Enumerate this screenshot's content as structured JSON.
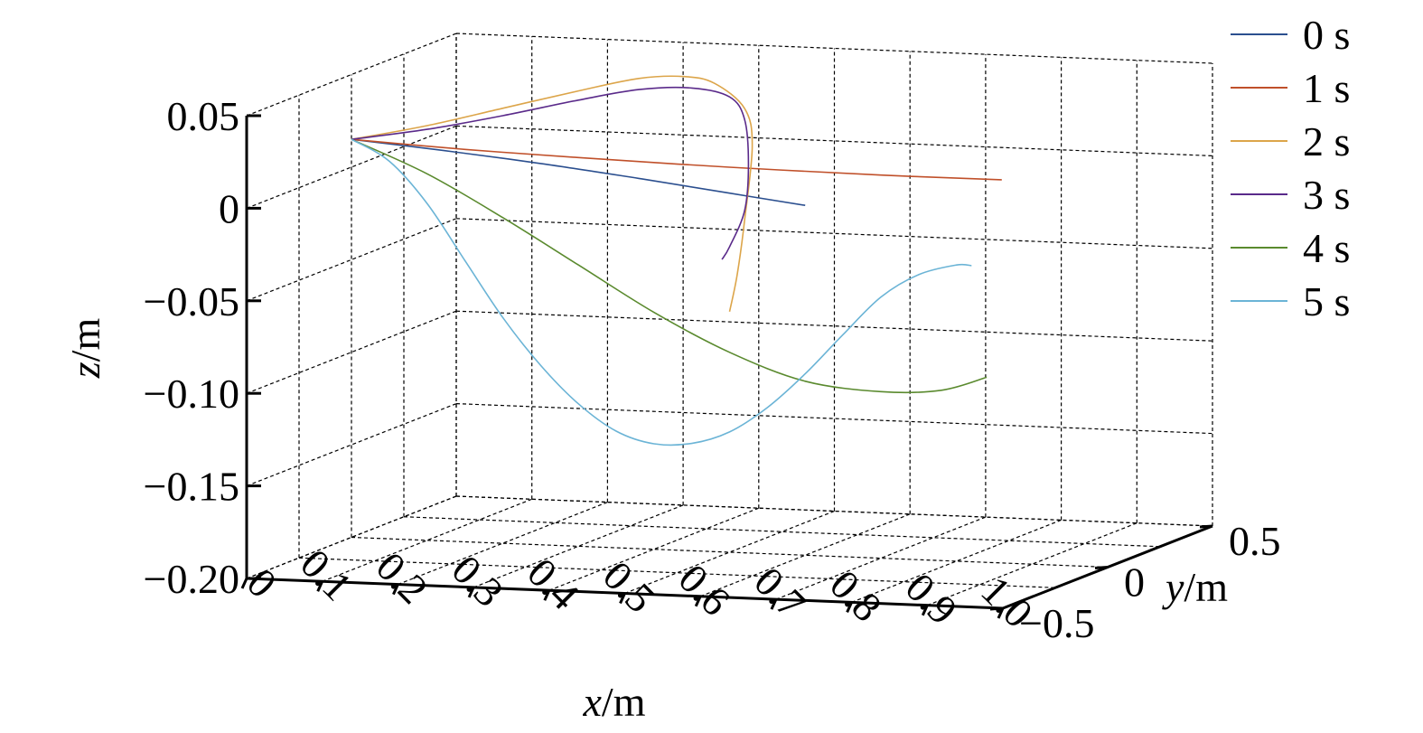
{
  "chart_data": {
    "type": "line",
    "projection": "3d",
    "grid": true,
    "legend_placement": "top-right",
    "title": "",
    "xlabel": {
      "var": "x",
      "unit": "/m"
    },
    "ylabel": {
      "var": "y",
      "unit": "/m"
    },
    "zlabel": {
      "var": "z",
      "unit": "/m"
    },
    "xlim": [
      0,
      1.0
    ],
    "ylim": [
      -0.5,
      0.5
    ],
    "zlim": [
      -0.2,
      0.05
    ],
    "x_ticks": [
      "0",
      "0.1",
      "0.2",
      "0.3",
      "0.4",
      "0.5",
      "0.6",
      "0.7",
      "0.8",
      "0.9",
      "1.0"
    ],
    "y_ticks": [
      "−0.5",
      "0",
      "0.5"
    ],
    "z_ticks": [
      "0.05",
      "0",
      "−0.05",
      "−0.10",
      "−0.15",
      "−0.20"
    ],
    "series": [
      {
        "name": "0 s",
        "color": "#2b4f8f",
        "x": [
          0,
          0.12,
          0.25,
          0.38,
          0.5,
          0.6
        ],
        "y": [
          0,
          0,
          0,
          0,
          0,
          0
        ],
        "z": [
          0.015,
          0.011,
          0.006,
          0.0,
          -0.006,
          -0.011
        ]
      },
      {
        "name": "1 s",
        "color": "#c0502a",
        "x": [
          0,
          0.15,
          0.3,
          0.5,
          0.7,
          0.86
        ],
        "y": [
          0,
          0,
          0,
          0,
          0,
          0
        ],
        "z": [
          0.015,
          0.012,
          0.01,
          0.008,
          0.007,
          0.007
        ]
      },
      {
        "name": "2 s",
        "color": "#dca54a",
        "x": [
          0,
          0.1,
          0.2,
          0.3,
          0.38,
          0.44,
          0.48,
          0.52,
          0.53,
          0.52,
          0.51,
          0.5
        ],
        "y": [
          0,
          0,
          0,
          0,
          0,
          0,
          0,
          0,
          0,
          0,
          0,
          0
        ],
        "z": [
          0.015,
          0.024,
          0.035,
          0.046,
          0.054,
          0.056,
          0.053,
          0.04,
          0.02,
          -0.02,
          -0.05,
          -0.07
        ]
      },
      {
        "name": "3 s",
        "color": "#5a2a8a",
        "x": [
          0,
          0.1,
          0.2,
          0.3,
          0.38,
          0.45,
          0.5,
          0.52,
          0.525,
          0.52,
          0.5,
          0.49
        ],
        "y": [
          0,
          0,
          0,
          0,
          0,
          0,
          0,
          0,
          0,
          0,
          0,
          0
        ],
        "z": [
          0.015,
          0.022,
          0.031,
          0.041,
          0.048,
          0.05,
          0.046,
          0.034,
          0.01,
          -0.015,
          -0.035,
          -0.042
        ]
      },
      {
        "name": "4 s",
        "color": "#5a8a2e",
        "x": [
          0,
          0.1,
          0.2,
          0.3,
          0.4,
          0.5,
          0.6,
          0.7,
          0.78,
          0.84
        ],
        "y": [
          0,
          0,
          0,
          0,
          0,
          0,
          0,
          0,
          0,
          0
        ],
        "z": [
          0.015,
          -0.002,
          -0.024,
          -0.048,
          -0.072,
          -0.092,
          -0.106,
          -0.11,
          -0.108,
          -0.1
        ]
      },
      {
        "name": "5 s",
        "color": "#6bb4d6",
        "x": [
          0,
          0.05,
          0.1,
          0.15,
          0.2,
          0.25,
          0.3,
          0.35,
          0.4,
          0.45,
          0.5,
          0.55,
          0.6,
          0.65,
          0.7,
          0.75,
          0.8,
          0.82
        ],
        "y": [
          0,
          0,
          0,
          0,
          0,
          0,
          0,
          0,
          0,
          0,
          0,
          0,
          0,
          0,
          0,
          0,
          0,
          0
        ],
        "z": [
          0.015,
          0.004,
          -0.018,
          -0.048,
          -0.078,
          -0.103,
          -0.123,
          -0.137,
          -0.143,
          -0.142,
          -0.135,
          -0.121,
          -0.102,
          -0.08,
          -0.059,
          -0.046,
          -0.04,
          -0.04
        ]
      }
    ]
  }
}
